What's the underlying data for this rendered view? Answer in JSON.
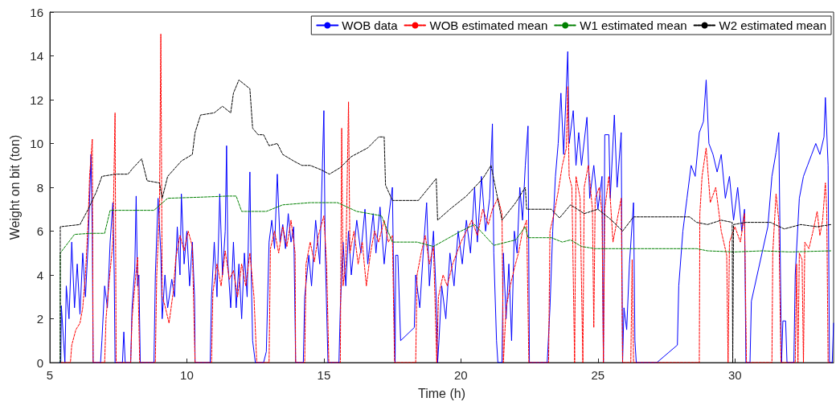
{
  "chart_data": {
    "type": "line",
    "xlabel": "Time (h)",
    "ylabel": "Weight on bit (ton)",
    "xlim": [
      5,
      33.6
    ],
    "xticks": [
      5,
      10,
      15,
      20,
      25,
      30
    ],
    "ylim": [
      0,
      16
    ],
    "yticks": [
      0,
      2,
      4,
      6,
      8,
      10,
      12,
      14,
      16
    ],
    "grid": false,
    "legend": "top right",
    "marker": "none",
    "series": [
      {
        "name": "WOB data",
        "color": "#0000ff",
        "line_style": "solid",
        "x": [
          5.35,
          5.4,
          5.42,
          5.5,
          5.55,
          5.6,
          5.7,
          5.8,
          5.9,
          6.0,
          6.1,
          6.2,
          6.3,
          6.4,
          6.45,
          6.5,
          6.55,
          6.58,
          6.85,
          6.9,
          7.0,
          7.1,
          7.2,
          7.3,
          7.35,
          7.38,
          7.65,
          7.7,
          7.75,
          7.95,
          8.0,
          8.1,
          8.15,
          8.2,
          8.25,
          8.3,
          8.8,
          8.85,
          8.95,
          9.05,
          9.1,
          9.2,
          9.3,
          9.45,
          9.55,
          9.65,
          9.75,
          9.8,
          9.9,
          10.0,
          10.1,
          10.2,
          10.28,
          10.3,
          10.85,
          10.9,
          11.0,
          11.1,
          11.2,
          11.3,
          11.4,
          11.45,
          11.5,
          11.6,
          11.7,
          11.8,
          11.9,
          12.0,
          12.1,
          12.2,
          12.3,
          12.35,
          12.4,
          12.5,
          12.8,
          12.9,
          13.0,
          13.1,
          13.2,
          13.3,
          13.4,
          13.5,
          13.6,
          13.7,
          13.8,
          13.9,
          13.97,
          14.25,
          14.3,
          14.45,
          14.55,
          14.7,
          14.85,
          15.0,
          15.05,
          15.15,
          15.55,
          15.6,
          15.7,
          15.8,
          15.9,
          16.0,
          16.2,
          16.35,
          16.5,
          16.6,
          16.8,
          16.9,
          17.05,
          17.2,
          17.35,
          17.5,
          17.55,
          17.6,
          17.62,
          17.7,
          17.8,
          18.3,
          18.35,
          18.5,
          18.65,
          18.75,
          18.85,
          19.0,
          19.1,
          19.15,
          19.2,
          19.3,
          19.45,
          19.6,
          19.75,
          19.9,
          20.05,
          20.2,
          20.35,
          20.5,
          20.6,
          20.75,
          20.9,
          21.05,
          21.15,
          21.2,
          21.3,
          21.35,
          21.5,
          21.55,
          21.65,
          21.75,
          21.85,
          21.95,
          22.05,
          22.15,
          22.25,
          22.35,
          22.45,
          22.5,
          23.15,
          23.25,
          23.35,
          23.45,
          23.55,
          23.65,
          23.75,
          23.9,
          23.95,
          24.1,
          24.2,
          24.3,
          24.4,
          24.6,
          24.7,
          24.85,
          25.0,
          25.15,
          25.2,
          25.25,
          25.4,
          25.45,
          25.6,
          25.7,
          25.85,
          25.9,
          25.95,
          26.05,
          26.15,
          26.3,
          26.35,
          26.4,
          27.15,
          27.9,
          27.95,
          28.1,
          28.25,
          28.4,
          28.55,
          28.7,
          28.85,
          28.95,
          29.05,
          29.2,
          29.35,
          29.5,
          29.65,
          29.8,
          29.95,
          30.1,
          30.25,
          30.35,
          30.4,
          30.55,
          30.6,
          31.2,
          31.35,
          31.5,
          31.6,
          31.7,
          31.75,
          31.85,
          31.9,
          32.15,
          32.2,
          32.35,
          32.5,
          32.65,
          32.8,
          32.95,
          33.1,
          33.25,
          33.3,
          33.4,
          33.45,
          33.55,
          33.6
        ],
        "values": [
          0,
          0,
          2.6,
          1.0,
          0,
          3.5,
          2.0,
          5.5,
          2.5,
          4.5,
          2.2,
          5.0,
          3.0,
          5.5,
          7.5,
          9.5,
          6.0,
          0,
          0,
          1.0,
          3.5,
          2.5,
          5.5,
          7.3,
          4.0,
          0,
          0,
          1.4,
          0,
          0,
          2.5,
          4.3,
          7.6,
          3.5,
          4.0,
          0,
          0,
          4.0,
          7.5,
          5.0,
          2.0,
          4.0,
          2.5,
          3.8,
          3.0,
          6.2,
          4.0,
          7.7,
          4.5,
          6.0,
          3.5,
          5.5,
          3.0,
          0,
          0,
          3.0,
          5.5,
          3.0,
          7.7,
          4.0,
          6.0,
          9.9,
          4.5,
          2.5,
          5.5,
          2.5,
          4.5,
          2.0,
          5.0,
          3.0,
          8.7,
          4.0,
          1.0,
          0,
          0,
          0.5,
          5.5,
          6.5,
          5.2,
          8.6,
          5.5,
          6.3,
          5.2,
          6.8,
          5.5,
          6.2,
          0,
          0,
          3.0,
          4.9,
          3.5,
          6.5,
          4.5,
          11.5,
          5.0,
          0,
          0,
          2.5,
          5.5,
          3.5,
          6.0,
          4.0,
          6.5,
          5.0,
          7.0,
          4.5,
          6.8,
          5.0,
          7.1,
          4.5,
          6.5,
          8.0,
          3.5,
          0,
          4.9,
          4.9,
          1.0,
          1.6,
          4.0,
          2.5,
          5.5,
          7.3,
          3.5,
          6.0,
          3.0,
          0,
          1.0,
          3.5,
          2.0,
          5.0,
          3.5,
          6.0,
          4.5,
          6.5,
          5.0,
          8.0,
          5.5,
          8.5,
          6.0,
          7.5,
          10.9,
          5.0,
          1.0,
          0,
          0,
          5.0,
          2.0,
          4.5,
          1.0,
          6.0,
          5.0,
          8.0,
          6.5,
          9.0,
          10.8,
          0,
          0,
          2.5,
          6.0,
          8.5,
          10.0,
          12.3,
          9.5,
          14.2,
          10.0,
          11.5,
          9.0,
          10.5,
          9.0,
          11.2,
          7.5,
          9.0,
          7.0,
          8.5,
          0,
          10.4,
          10.4,
          7.5,
          11.3,
          8.0,
          10.5,
          0,
          2.5,
          1.5,
          4.5,
          7.3,
          1.0,
          0,
          0,
          0.8,
          3.5,
          6.0,
          7.5,
          9.0,
          8.5,
          10.5,
          11.0,
          12.9,
          10.0,
          9.5,
          8.7,
          9.5,
          7.5,
          8.5,
          6.5,
          8.0,
          6.0,
          7.0,
          0,
          0,
          2.8,
          6.2,
          8.5,
          9.6,
          10.5,
          0,
          1.9,
          1.9,
          0,
          0,
          4.0,
          7.5,
          8.5,
          9.0,
          9.5,
          10.0,
          9.5,
          10.3,
          12.1,
          9.0,
          0,
          0,
          1.8
        ]
      },
      {
        "name": "WOB estimated mean",
        "color": "#ff0000",
        "line_style": "dashed",
        "x": [
          5.4,
          5.75,
          5.8,
          5.95,
          6.1,
          6.2,
          6.3,
          6.4,
          6.45,
          6.55,
          6.58,
          7.0,
          7.05,
          7.15,
          7.3,
          7.38,
          7.42,
          7.95,
          8.0,
          8.1,
          8.2,
          8.28,
          8.85,
          8.9,
          9.0,
          9.05,
          9.1,
          9.2,
          9.35,
          9.5,
          9.6,
          9.75,
          9.9,
          10.05,
          10.2,
          10.3,
          10.9,
          10.95,
          11.1,
          11.25,
          11.4,
          11.55,
          11.7,
          11.85,
          12.0,
          12.15,
          12.3,
          12.45,
          12.55,
          13.0,
          13.05,
          13.2,
          13.35,
          13.5,
          13.65,
          13.8,
          13.95,
          13.97,
          14.3,
          14.35,
          14.5,
          14.65,
          14.8,
          15.0,
          15.1,
          15.18,
          15.6,
          15.65,
          15.7,
          15.8,
          15.9,
          15.95,
          16.1,
          16.25,
          16.4,
          16.55,
          16.7,
          16.85,
          17.0,
          17.2,
          17.35,
          17.5,
          17.58,
          18.35,
          18.4,
          18.55,
          18.7,
          18.85,
          19.0,
          19.12,
          19.18,
          19.35,
          19.5,
          19.7,
          19.85,
          20.0,
          20.2,
          20.4,
          20.6,
          20.8,
          21.0,
          21.15,
          21.35,
          21.5,
          21.55,
          21.65,
          21.8,
          21.95,
          22.1,
          22.25,
          22.4,
          22.48,
          23.2,
          23.25,
          23.4,
          23.55,
          23.7,
          23.85,
          23.9,
          23.95,
          24.05,
          24.15,
          24.2,
          24.35,
          24.45,
          24.5,
          24.65,
          24.8,
          24.85,
          24.9,
          25.05,
          25.15,
          25.2,
          25.25,
          25.4,
          25.55,
          25.7,
          25.85,
          25.9,
          26.2,
          26.25,
          26.3,
          28.7,
          28.72,
          28.8,
          28.95,
          29.1,
          29.3,
          29.5,
          29.7,
          29.75,
          29.8,
          30.0,
          30.2,
          30.35,
          30.42,
          31.35,
          31.38,
          31.5,
          31.6,
          31.68,
          32.2,
          32.25,
          32.3,
          32.35,
          32.45,
          32.5,
          32.55,
          32.7,
          32.85,
          33.0,
          33.1,
          33.2,
          33.3,
          33.35,
          33.4,
          33.5
        ],
        "values": [
          0,
          0,
          0.8,
          1.5,
          1.8,
          2.5,
          4.0,
          6.5,
          8.5,
          10.2,
          0,
          0,
          2.0,
          3.5,
          5.5,
          11.4,
          0,
          0,
          2.0,
          3.5,
          4.8,
          0,
          0,
          4.0,
          7.0,
          15.0,
          3.0,
          2.6,
          1.8,
          3.2,
          4.8,
          5.8,
          5.1,
          6.0,
          5.3,
          0,
          0,
          3.2,
          4.5,
          3.5,
          5.1,
          3.8,
          4.2,
          3.0,
          4.5,
          3.5,
          5.0,
          3.0,
          0,
          0,
          5.2,
          6.0,
          5.0,
          6.2,
          5.3,
          6.5,
          5.0,
          0,
          0,
          4.5,
          5.5,
          4.6,
          5.8,
          6.7,
          4.5,
          0,
          0,
          10.7,
          3.5,
          4.5,
          11.9,
          5.0,
          6.0,
          4.5,
          5.5,
          3.5,
          5.0,
          6.0,
          5.5,
          6.5,
          5.5,
          5.8,
          0,
          0,
          4.0,
          5.0,
          5.8,
          4.5,
          5.3,
          0,
          3.0,
          4.0,
          3.5,
          4.5,
          5.0,
          5.5,
          6.0,
          6.5,
          5.8,
          7.0,
          6.3,
          7.0,
          7.5,
          6.8,
          0,
          2.5,
          3.5,
          4.3,
          5.0,
          6.0,
          6.5,
          0,
          0,
          6.0,
          6.8,
          7.8,
          9.0,
          9.8,
          12.6,
          8.5,
          8.0,
          0,
          8.5,
          7.5,
          0,
          8.0,
          9.0,
          7.0,
          1.6,
          7.5,
          8.0,
          6.8,
          0,
          7.0,
          8.5,
          5.5,
          6.5,
          7.5,
          0,
          0,
          4.7,
          0,
          0,
          6.8,
          8.5,
          9.8,
          7.3,
          8.0,
          6.0,
          4.9,
          0,
          5.5,
          6.2,
          5.5,
          6.8,
          0,
          0,
          5.0,
          7.7,
          6.5,
          0,
          0,
          4.5,
          0,
          5.0,
          4.7,
          0,
          5.5,
          5.2,
          6.0,
          6.9,
          5.8,
          6.5,
          8.2,
          7.0,
          0,
          0
        ]
      },
      {
        "name": "W1 estimated mean",
        "color": "#008000",
        "line_style": "dashed",
        "x": [
          5.38,
          5.38,
          5.9,
          6.5,
          7.0,
          7.2,
          8.8,
          9.3,
          10.5,
          11.5,
          11.8,
          12.0,
          12.9,
          13.5,
          14.5,
          15.5,
          16.2,
          17.1,
          17.5,
          18.4,
          19.0,
          20.0,
          20.5,
          21.2,
          22.0,
          22.35,
          22.45,
          23.3,
          23.7,
          24.0,
          24.4,
          24.9,
          25.9,
          28.6,
          29.0,
          30.0,
          31.0,
          32.0,
          33.5
        ],
        "values": [
          0,
          5.0,
          5.85,
          5.9,
          5.9,
          6.95,
          6.95,
          7.5,
          7.55,
          7.6,
          7.6,
          6.9,
          6.9,
          7.2,
          7.3,
          7.3,
          6.9,
          6.7,
          5.5,
          5.5,
          5.3,
          6.0,
          6.3,
          5.35,
          5.6,
          6.2,
          5.7,
          5.7,
          5.5,
          5.6,
          5.3,
          5.2,
          5.2,
          5.2,
          5.1,
          5.05,
          5.1,
          5.05,
          5.1
        ]
      },
      {
        "name": "W2 estimated mean",
        "color": "#000000",
        "line_style": "dashed",
        "x": [
          5.38,
          5.38,
          6.1,
          6.4,
          6.7,
          6.9,
          7.4,
          7.85,
          8.05,
          8.35,
          8.55,
          9.0,
          9.1,
          9.3,
          9.8,
          10.2,
          10.3,
          10.5,
          11.0,
          11.3,
          11.6,
          11.7,
          11.9,
          12.3,
          12.4,
          12.6,
          12.8,
          13.0,
          13.3,
          13.5,
          13.9,
          14.2,
          14.5,
          14.9,
          15.2,
          15.6,
          16.0,
          16.6,
          17.0,
          17.2,
          17.25,
          17.5,
          18.45,
          19.1,
          19.15,
          19.6,
          20.2,
          20.8,
          21.1,
          21.5,
          22.0,
          22.35,
          22.4,
          23.3,
          23.6,
          24.0,
          24.5,
          25.0,
          25.5,
          25.9,
          26.3,
          28.35,
          28.6,
          29.0,
          29.5,
          29.9,
          29.92,
          29.95,
          30.4,
          31.3,
          31.8,
          32.4,
          33.0,
          33.5
        ],
        "values": [
          0,
          6.2,
          6.3,
          7.0,
          7.8,
          8.5,
          8.6,
          8.6,
          8.9,
          9.3,
          8.3,
          8.2,
          7.5,
          8.5,
          9.2,
          9.5,
          10.5,
          11.3,
          11.4,
          11.7,
          11.4,
          12.3,
          12.9,
          12.5,
          10.7,
          10.4,
          10.4,
          9.9,
          10.0,
          9.5,
          9.2,
          9.0,
          9.0,
          8.8,
          8.6,
          8.9,
          9.4,
          9.8,
          10.3,
          10.3,
          8.1,
          7.4,
          7.4,
          8.4,
          6.5,
          7.0,
          7.6,
          8.4,
          9.0,
          6.5,
          7.3,
          8.0,
          7.0,
          7.0,
          6.6,
          7.2,
          6.8,
          7.0,
          6.5,
          6.0,
          6.65,
          6.65,
          6.4,
          6.3,
          6.5,
          6.4,
          0,
          6.3,
          6.4,
          6.4,
          6.1,
          6.3,
          6.2,
          6.3
        ]
      }
    ]
  }
}
